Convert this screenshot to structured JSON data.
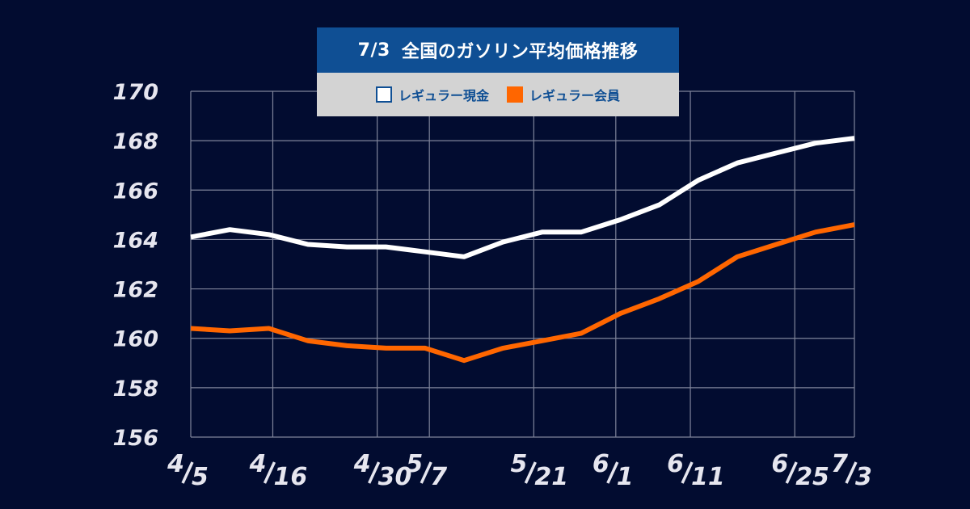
{
  "chart_data": {
    "type": "line",
    "title_date": "7/3",
    "title": "全国のガソリン平均価格推移",
    "y_ticks": [
      156,
      158,
      160,
      162,
      164,
      166,
      168,
      170
    ],
    "ylim": [
      156,
      170
    ],
    "x_start": "4/5",
    "x_end": "7/3",
    "x_labels": [
      {
        "month": "4",
        "day": "5",
        "date": "4/5"
      },
      {
        "month": "4",
        "day": "16",
        "date": "4/16"
      },
      {
        "month": "4",
        "day": "30",
        "date": "4/30"
      },
      {
        "month": "5",
        "day": "7",
        "date": "5/7"
      },
      {
        "month": "5",
        "day": "21",
        "date": "5/21"
      },
      {
        "month": "6",
        "day": "1",
        "date": "6/1"
      },
      {
        "month": "6",
        "day": "11",
        "date": "6/11"
      },
      {
        "month": "6",
        "day": "25",
        "date": "6/25"
      },
      {
        "month": "7",
        "day": "3",
        "date": "7/3"
      }
    ],
    "series": [
      {
        "name": "レギュラー現金",
        "color": "#ffffff",
        "values": [
          164.1,
          164.4,
          164.2,
          163.8,
          163.7,
          163.7,
          163.5,
          163.3,
          163.9,
          164.3,
          164.3,
          164.8,
          165.4,
          166.4,
          167.1,
          167.5,
          167.9,
          168.1
        ]
      },
      {
        "name": "レギュラー会員",
        "color": "#ff6600",
        "values": [
          160.4,
          160.3,
          160.4,
          159.9,
          159.7,
          159.6,
          159.6,
          159.1,
          159.6,
          159.9,
          160.2,
          161.0,
          161.6,
          162.3,
          163.3,
          163.8,
          164.3,
          164.6
        ]
      }
    ],
    "grid": true,
    "legend_position": "top-center"
  }
}
